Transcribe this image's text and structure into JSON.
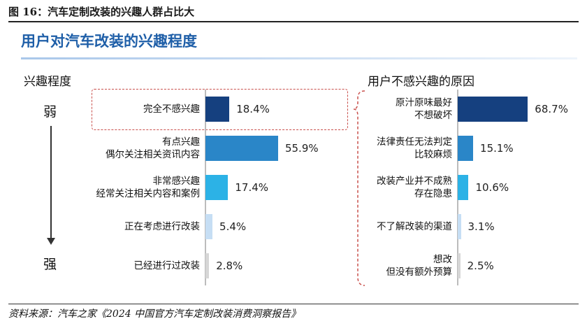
{
  "figure_title": "图 16：汽车定制改装的兴趣人群占比大",
  "main_title": "用户对汽车改装的兴趣程度",
  "source": "资料来源：汽车之家《2024 中国官方汽车定制改装消费洞察报告》",
  "chart_data": [
    {
      "type": "bar",
      "orientation": "horizontal",
      "title": "兴趣程度",
      "axis_weak": "弱",
      "axis_strong": "强",
      "highlight_index": 0,
      "xlim": [
        0,
        100
      ],
      "categories": [
        [
          "完全不感兴趣"
        ],
        [
          "有点兴趣",
          "偶尔关注相关资讯内容"
        ],
        [
          "非常感兴趣",
          "经常关注相关内容和案例"
        ],
        [
          "正在考虑进行改装"
        ],
        [
          "已经进行过改装"
        ]
      ],
      "values": [
        18.4,
        55.9,
        17.4,
        5.4,
        2.8
      ],
      "value_labels": [
        "18.4%",
        "55.9%",
        "17.4%",
        "5.4%",
        "2.8%"
      ],
      "colors": [
        "#15407f",
        "#2a86c8",
        "#2cb2e6",
        "#c6def4",
        "#d6d6d6"
      ]
    },
    {
      "type": "bar",
      "orientation": "horizontal",
      "title": "用户不感兴趣的原因",
      "xlim": [
        0,
        100
      ],
      "categories": [
        [
          "原汁原味最好",
          "不想破坏"
        ],
        [
          "法律责任无法判定",
          "比较麻烦"
        ],
        [
          "改装产业并不成熟",
          "存在隐患"
        ],
        [
          "不了解改装的渠道"
        ],
        [
          "想改",
          "但没有额外预算"
        ]
      ],
      "values": [
        68.7,
        15.1,
        10.6,
        3.1,
        2.5
      ],
      "value_labels": [
        "68.7%",
        "15.1%",
        "10.6%",
        "3.1%",
        "2.5%"
      ],
      "colors": [
        "#15407f",
        "#2a86c8",
        "#2cb2e6",
        "#c6def4",
        "#d6d6d6"
      ]
    }
  ]
}
